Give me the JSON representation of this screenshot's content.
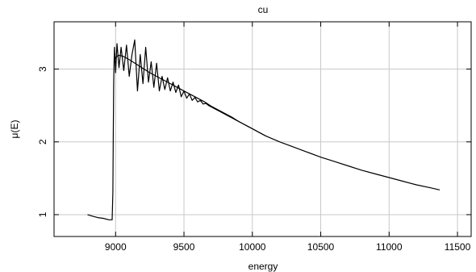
{
  "chart_data": {
    "type": "line",
    "title": "cu",
    "xlabel": "energy",
    "ylabel": "μ(E)",
    "xlim": [
      8550,
      11600
    ],
    "ylim": [
      0.7,
      3.65
    ],
    "grid": true,
    "legend": "none",
    "line_color": "#000000",
    "grid_color": "#c8c8c8",
    "xticks": [
      9000,
      9500,
      10000,
      10500,
      11000,
      11500
    ],
    "xtick_labels": [
      "9000",
      "9500",
      "10000",
      "10500",
      "11000",
      "11500"
    ],
    "yticks": [
      1,
      2,
      3
    ],
    "ytick_labels": [
      "1",
      "2",
      "3"
    ],
    "series": [
      {
        "x": [
          8795,
          8830,
          8870,
          8910,
          8950,
          8975,
          8980,
          8983,
          8986,
          8989,
          8992,
          9000,
          9010,
          9025,
          9040,
          9060,
          9080,
          9100,
          9120,
          9140,
          9160,
          9180,
          9200,
          9220,
          9240,
          9260,
          9280,
          9300,
          9320,
          9340,
          9360,
          9380,
          9400,
          9420,
          9440,
          9460,
          9480,
          9500,
          9520,
          9540,
          9560,
          9580,
          9600,
          9620,
          9640,
          9660,
          9680,
          9700,
          9730,
          9760,
          9790,
          9820,
          9850,
          9880,
          9910,
          9940,
          9970,
          10000,
          10050,
          10100,
          10200,
          10300,
          10400,
          10500,
          10600,
          10700,
          10800,
          10900,
          11000,
          11100,
          11200,
          11300,
          11370
        ],
        "y": [
          1.0,
          0.98,
          0.96,
          0.95,
          0.93,
          0.93,
          1.3,
          2.1,
          2.8,
          3.1,
          3.3,
          2.95,
          3.35,
          3.02,
          3.3,
          2.98,
          3.33,
          2.9,
          3.2,
          3.4,
          2.7,
          3.2,
          2.8,
          3.3,
          2.82,
          3.1,
          2.75,
          3.08,
          2.7,
          2.9,
          2.72,
          2.88,
          2.7,
          2.82,
          2.68,
          2.78,
          2.62,
          2.7,
          2.6,
          2.66,
          2.57,
          2.61,
          2.55,
          2.57,
          2.52,
          2.53,
          2.5,
          2.48,
          2.45,
          2.42,
          2.39,
          2.36,
          2.33,
          2.3,
          2.27,
          2.24,
          2.21,
          2.18,
          2.13,
          2.08,
          2.0,
          1.93,
          1.86,
          1.79,
          1.73,
          1.67,
          1.61,
          1.56,
          1.51,
          1.46,
          1.41,
          1.37,
          1.34
        ]
      },
      {
        "x": [
          8990,
          9000,
          9020,
          9050,
          9100,
          9150,
          9200,
          9250,
          9300,
          9350,
          9400,
          9450,
          9500,
          9550,
          9600,
          9650,
          9700,
          9750,
          9800,
          9850,
          9900,
          9950,
          10000,
          10050,
          10100
        ],
        "y": [
          3.1,
          3.16,
          3.19,
          3.18,
          3.13,
          3.07,
          3.01,
          2.95,
          2.9,
          2.85,
          2.8,
          2.75,
          2.7,
          2.65,
          2.6,
          2.55,
          2.49,
          2.44,
          2.39,
          2.34,
          2.28,
          2.23,
          2.18,
          2.13,
          2.08
        ]
      }
    ]
  }
}
